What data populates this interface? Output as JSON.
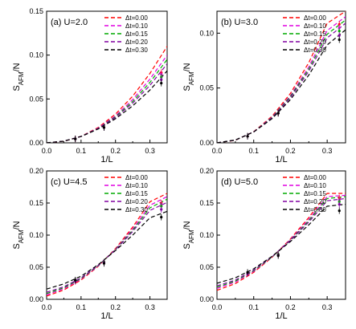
{
  "chart_data": [
    {
      "type": "line",
      "title": "(a) U=2.0",
      "xlabel": "1/L",
      "ylabel": "S_AFM/N",
      "xlim": [
        0.0,
        0.35
      ],
      "ylim": [
        0.0,
        0.15
      ],
      "xticks": [
        "0.0",
        "0.1",
        "0.2",
        "0.3"
      ],
      "yticks": [
        "0.00",
        "0.05",
        "0.10",
        "0.15"
      ],
      "legend_position": "top-right",
      "grid": false,
      "markers": {
        "x": [
          0.0833,
          0.1667,
          0.333
        ],
        "series": [
          {
            "name": "Δt=0.00",
            "values": [
              0.0045,
              0.0175,
              0.08
            ]
          },
          {
            "name": "Δt=0.10",
            "values": [
              0.0045,
              0.0175,
              0.078
            ]
          },
          {
            "name": "Δt=0.15",
            "values": [
              0.0045,
              0.0175,
              0.075
            ]
          },
          {
            "name": "Δt=0.20",
            "values": [
              0.0045,
              0.0175,
              0.072
            ]
          },
          {
            "name": "Δt=0.30",
            "values": [
              0.0045,
              0.0175,
              0.068
            ]
          }
        ]
      },
      "x": [
        0.0,
        0.05,
        0.1,
        0.15,
        0.2,
        0.25,
        0.3,
        0.35
      ],
      "series": [
        {
          "name": "Δt=0.00",
          "color": "#ff0000",
          "values": [
            0.0,
            0.0017,
            0.0074,
            0.0176,
            0.0327,
            0.0531,
            0.0791,
            0.11
          ]
        },
        {
          "name": "Δt=0.10",
          "color": "#e000e0",
          "values": [
            0.0,
            0.0018,
            0.0073,
            0.0169,
            0.0308,
            0.0493,
            0.0727,
            0.1
          ]
        },
        {
          "name": "Δt=0.15",
          "color": "#00aa00",
          "values": [
            0.0,
            0.0018,
            0.0073,
            0.0165,
            0.0297,
            0.0471,
            0.0689,
            0.095
          ]
        },
        {
          "name": "Δt=0.20",
          "color": "#8000a0",
          "values": [
            0.0,
            0.0019,
            0.0073,
            0.0163,
            0.0288,
            0.0452,
            0.0655,
            0.09
          ]
        },
        {
          "name": "Δt=0.30",
          "color": "#000000",
          "values": [
            0.0,
            0.0019,
            0.0072,
            0.0158,
            0.0274,
            0.0422,
            0.0602,
            0.082
          ]
        }
      ]
    },
    {
      "type": "line",
      "title": "(b) U=3.0",
      "xlabel": "1/L",
      "ylabel": "S_AFM/N",
      "xlim": [
        0.0,
        0.35
      ],
      "ylim": [
        0.0,
        0.12
      ],
      "xticks": [
        "0.0",
        "0.1",
        "0.2",
        "0.3"
      ],
      "yticks": [
        "0.00",
        "0.05",
        "0.10"
      ],
      "legend_position": "top-right",
      "grid": false,
      "markers": {
        "x": [
          0.0833,
          0.1667,
          0.333
        ],
        "series": [
          {
            "name": "Δt=0.00",
            "values": [
              0.006,
              0.027,
              0.108
            ]
          },
          {
            "name": "Δt=0.10",
            "values": [
              0.006,
              0.027,
              0.105
            ]
          },
          {
            "name": "Δt=0.15",
            "values": [
              0.006,
              0.027,
              0.102
            ]
          },
          {
            "name": "Δt=0.20",
            "values": [
              0.006,
              0.027,
              0.098
            ]
          },
          {
            "name": "Δt=0.30",
            "values": [
              0.006,
              0.027,
              0.094
            ]
          }
        ]
      },
      "x": [
        0.0,
        0.05,
        0.1,
        0.15,
        0.2,
        0.25,
        0.3,
        0.35
      ],
      "series": [
        {
          "name": "Δt=0.00",
          "color": "#ff0000",
          "values": [
            0.0,
            0.0023,
            0.0102,
            0.0243,
            0.0451,
            0.0732,
            0.109,
            0.12
          ]
        },
        {
          "name": "Δt=0.10",
          "color": "#e000e0",
          "values": [
            0.0,
            0.0024,
            0.01,
            0.0235,
            0.0431,
            0.0693,
            0.1024,
            0.115
          ]
        },
        {
          "name": "Δt=0.15",
          "color": "#00aa00",
          "values": [
            0.0,
            0.0024,
            0.01,
            0.0231,
            0.0422,
            0.0673,
            0.099,
            0.112
          ]
        },
        {
          "name": "Δt=0.20",
          "color": "#8000a0",
          "values": [
            0.0,
            0.0025,
            0.01,
            0.0227,
            0.0411,
            0.0654,
            0.0956,
            0.109
          ]
        },
        {
          "name": "Δt=0.30",
          "color": "#000000",
          "values": [
            0.0,
            0.0026,
            0.0099,
            0.0221,
            0.0394,
            0.0618,
            0.0893,
            0.103
          ]
        }
      ]
    },
    {
      "type": "line",
      "title": "(c) U=4.5",
      "xlabel": "1/L",
      "ylabel": "S_AFM/N",
      "xlim": [
        0.0,
        0.35
      ],
      "ylim": [
        0.0,
        0.2
      ],
      "xticks": [
        "0.0",
        "0.1",
        "0.2",
        "0.3"
      ],
      "yticks": [
        "0.00",
        "0.05",
        "0.10",
        "0.15",
        "0.20"
      ],
      "legend_position": "top-right",
      "grid": false,
      "markers": {
        "x": [
          0.0833,
          0.1667,
          0.333
        ],
        "series": [
          {
            "name": "Δt=0.00",
            "values": [
              0.028,
              0.058,
              0.15
            ]
          },
          {
            "name": "Δt=0.10",
            "values": [
              0.028,
              0.058,
              0.148
            ]
          },
          {
            "name": "Δt=0.15",
            "values": [
              0.029,
              0.058,
              0.145
            ]
          },
          {
            "name": "Δt=0.20",
            "values": [
              0.029,
              0.057,
              0.14
            ]
          },
          {
            "name": "Δt=0.30",
            "values": [
              0.03,
              0.056,
              0.128
            ]
          }
        ]
      },
      "x": [
        0.0,
        0.05,
        0.1,
        0.15,
        0.2,
        0.25,
        0.3,
        0.35
      ],
      "series": [
        {
          "name": "Δt=0.00",
          "color": "#ff0000",
          "values": [
            0.005,
            0.0145,
            0.03,
            0.0515,
            0.079,
            0.1125,
            0.152,
            0.165
          ]
        },
        {
          "name": "Δt=0.10",
          "color": "#e000e0",
          "values": [
            0.007,
            0.0165,
            0.0315,
            0.052,
            0.078,
            0.1095,
            0.1465,
            0.16
          ]
        },
        {
          "name": "Δt=0.15",
          "color": "#00aa00",
          "values": [
            0.009,
            0.018,
            0.0325,
            0.0525,
            0.0775,
            0.1075,
            0.1425,
            0.156
          ]
        },
        {
          "name": "Δt=0.20",
          "color": "#8000a0",
          "values": [
            0.011,
            0.0195,
            0.0335,
            0.053,
            0.077,
            0.1055,
            0.1385,
            0.151
          ]
        },
        {
          "name": "Δt=0.30",
          "color": "#000000",
          "values": [
            0.016,
            0.024,
            0.036,
            0.054,
            0.076,
            0.1,
            0.127,
            0.137
          ]
        }
      ]
    },
    {
      "type": "line",
      "title": "(d) U=5.0",
      "xlabel": "1/L",
      "ylabel": "S_AFM/N",
      "xlim": [
        0.0,
        0.35
      ],
      "ylim": [
        0.0,
        0.2
      ],
      "xticks": [
        "0.0",
        "0.1",
        "0.2",
        "0.3"
      ],
      "yticks": [
        "0.00",
        "0.05",
        "0.10",
        "0.15",
        "0.20"
      ],
      "legend_position": "top-right",
      "grid": false,
      "markers": {
        "x": [
          0.0833,
          0.1667,
          0.333
        ],
        "series": [
          {
            "name": "Δt=0.00",
            "values": [
              0.04,
              0.07,
              0.158
            ]
          },
          {
            "name": "Δt=0.10",
            "values": [
              0.04,
              0.07,
              0.155
            ]
          },
          {
            "name": "Δt=0.15",
            "values": [
              0.041,
              0.07,
              0.152
            ]
          },
          {
            "name": "Δt=0.20",
            "values": [
              0.041,
              0.069,
              0.148
            ]
          },
          {
            "name": "Δt=0.30",
            "values": [
              0.042,
              0.068,
              0.138
            ]
          }
        ]
      },
      "x": [
        0.0,
        0.05,
        0.1,
        0.15,
        0.2,
        0.25,
        0.3,
        0.35
      ],
      "series": [
        {
          "name": "Δt=0.00",
          "color": "#ff0000",
          "values": [
            0.014,
            0.0245,
            0.042,
            0.0655,
            0.094,
            0.1275,
            0.165,
            0.165
          ]
        },
        {
          "name": "Δt=0.10",
          "color": "#e000e0",
          "values": [
            0.017,
            0.027,
            0.0435,
            0.066,
            0.093,
            0.1245,
            0.16,
            0.162
          ]
        },
        {
          "name": "Δt=0.15",
          "color": "#00aa00",
          "values": [
            0.019,
            0.0285,
            0.0445,
            0.066,
            0.092,
            0.1225,
            0.157,
            0.16
          ]
        },
        {
          "name": "Δt=0.20",
          "color": "#8000a0",
          "values": [
            0.021,
            0.03,
            0.0455,
            0.0665,
            0.0915,
            0.1205,
            0.1535,
            0.157
          ]
        },
        {
          "name": "Δt=0.30",
          "color": "#000000",
          "values": [
            0.025,
            0.0335,
            0.0475,
            0.067,
            0.09,
            0.116,
            0.145,
            0.148
          ]
        }
      ]
    }
  ]
}
